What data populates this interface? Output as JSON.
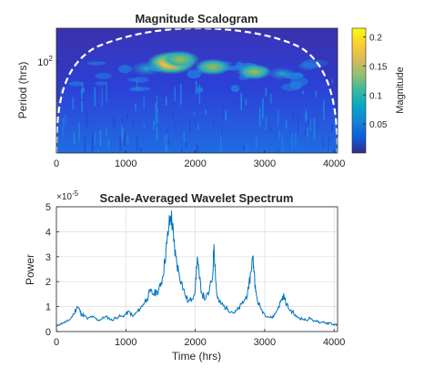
{
  "figure": {
    "colors": {
      "axis": "#262626",
      "grid": "#dcdcdc",
      "line": "#0072bd",
      "coi": "#ffffff"
    }
  },
  "chart_data": [
    {
      "type": "heatmap",
      "title": "Magnitude Scalogram",
      "xlabel": "",
      "ylabel": "Period (hrs)",
      "xlim": [
        0,
        4050
      ],
      "x_ticks": [
        0,
        1000,
        2000,
        3000,
        4000
      ],
      "y_scale": "log",
      "y_ticks": [
        {
          "value": 100,
          "label": "10²",
          "base": "10",
          "exp": "2"
        }
      ],
      "colormap": "parula",
      "colorbar": {
        "label": "Magnitude",
        "range": [
          0,
          0.215
        ],
        "ticks": [
          0.05,
          0.1,
          0.15,
          0.2
        ]
      },
      "cone_of_influence": "dashed white",
      "hotspots": [
        {
          "time": 1650,
          "period": 95,
          "magnitude": 0.2
        },
        {
          "time": 1780,
          "period": 110,
          "magnitude": 0.14
        },
        {
          "time": 1300,
          "period": 75,
          "magnitude": 0.1
        },
        {
          "time": 2250,
          "period": 80,
          "magnitude": 0.12
        },
        {
          "time": 2850,
          "period": 65,
          "magnitude": 0.11
        },
        {
          "time": 3250,
          "period": 60,
          "magnitude": 0.08
        }
      ]
    },
    {
      "type": "line",
      "title": "Scale-Averaged Wavelet Spectrum",
      "xlabel": "Time (hrs)",
      "ylabel": "Power",
      "exponent": {
        "base": "×10",
        "exp": "-5"
      },
      "xlim": [
        0,
        4050
      ],
      "ylim": [
        0,
        5
      ],
      "x_ticks": [
        0,
        1000,
        2000,
        3000,
        4000
      ],
      "y_ticks": [
        0,
        1,
        2,
        3,
        4,
        5
      ],
      "grid": true,
      "series": [
        {
          "x": [
            0,
            50,
            100,
            150,
            200,
            250,
            300,
            330,
            360,
            400,
            450,
            500,
            550,
            600,
            650,
            700,
            750,
            800,
            850,
            900,
            950,
            1000,
            1050,
            1100,
            1150,
            1200,
            1250,
            1300,
            1350,
            1400,
            1450,
            1500,
            1530,
            1560,
            1590,
            1620,
            1650,
            1670,
            1690,
            1720,
            1760,
            1800,
            1850,
            1900,
            1950,
            2000,
            2030,
            2060,
            2100,
            2150,
            2200,
            2250,
            2270,
            2290,
            2310,
            2340,
            2380,
            2420,
            2470,
            2520,
            2570,
            2620,
            2670,
            2720,
            2770,
            2800,
            2830,
            2850,
            2870,
            2900,
            2950,
            3000,
            3050,
            3100,
            3150,
            3200,
            3250,
            3270,
            3300,
            3350,
            3400,
            3450,
            3500,
            3550,
            3600,
            3650,
            3700,
            3750,
            3800,
            3850,
            3900,
            3950,
            4000,
            4050
          ],
          "y": [
            0.2,
            0.3,
            0.35,
            0.4,
            0.5,
            0.7,
            1.0,
            0.9,
            0.7,
            0.65,
            0.5,
            0.6,
            0.55,
            0.45,
            0.5,
            0.6,
            0.55,
            0.45,
            0.55,
            0.6,
            0.6,
            0.7,
            0.8,
            0.6,
            0.75,
            0.9,
            1.1,
            1.3,
            1.6,
            1.5,
            1.6,
            1.8,
            2.2,
            2.8,
            3.5,
            4.2,
            4.65,
            4.3,
            3.6,
            3.0,
            2.4,
            2.0,
            1.5,
            1.2,
            1.3,
            1.7,
            3.0,
            2.1,
            1.5,
            1.3,
            1.6,
            2.2,
            3.5,
            2.4,
            1.5,
            1.2,
            1.1,
            1.0,
            0.9,
            0.8,
            0.75,
            0.9,
            1.1,
            1.3,
            1.7,
            2.4,
            3.0,
            2.4,
            1.6,
            1.2,
            0.9,
            0.7,
            0.6,
            0.55,
            0.7,
            1.0,
            1.3,
            1.45,
            1.2,
            0.9,
            0.8,
            0.6,
            0.55,
            0.5,
            0.45,
            0.55,
            0.4,
            0.45,
            0.35,
            0.4,
            0.3,
            0.35,
            0.25,
            0.3
          ]
        }
      ]
    }
  ]
}
